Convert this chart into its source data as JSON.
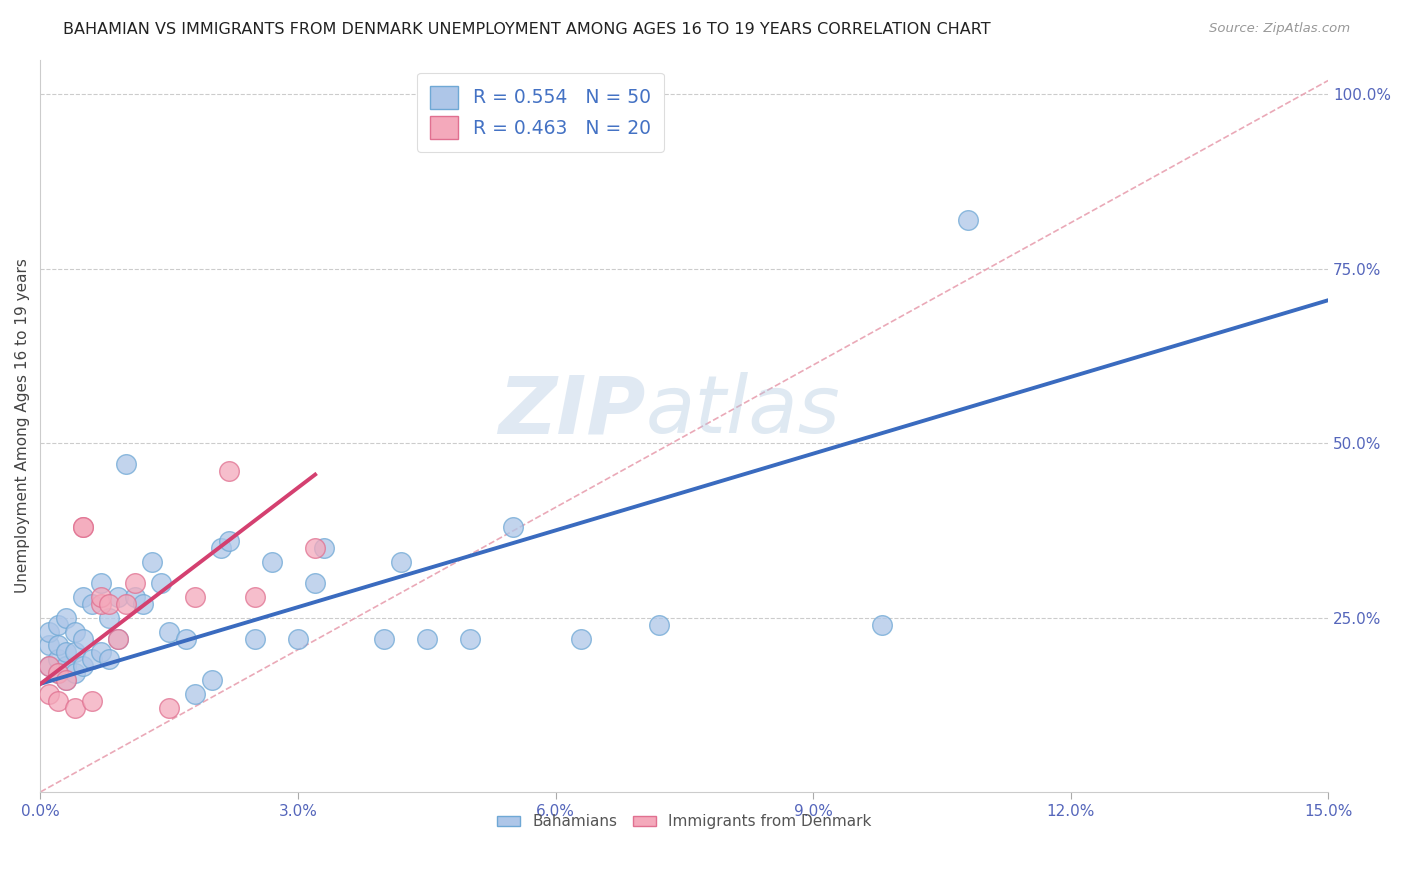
{
  "title": "BAHAMIAN VS IMMIGRANTS FROM DENMARK UNEMPLOYMENT AMONG AGES 16 TO 19 YEARS CORRELATION CHART",
  "source": "Source: ZipAtlas.com",
  "ylabel": "Unemployment Among Ages 16 to 19 years",
  "xlim": [
    0.0,
    0.15
  ],
  "ylim": [
    0.0,
    1.05
  ],
  "xticks": [
    0.0,
    0.03,
    0.06,
    0.09,
    0.12,
    0.15
  ],
  "xtick_labels": [
    "0.0%",
    "3.0%",
    "6.0%",
    "9.0%",
    "12.0%",
    "15.0%"
  ],
  "yticks": [
    0.0,
    0.25,
    0.5,
    0.75,
    1.0
  ],
  "ytick_labels": [
    "",
    "25.0%",
    "50.0%",
    "75.0%",
    "100.0%"
  ],
  "bahamians_color": "#aec6e8",
  "bahamians_edge": "#6fa8d5",
  "denmark_color": "#f4a9bb",
  "denmark_edge": "#e07090",
  "reg_line_blue": "#3a6bbf",
  "reg_line_pink": "#d44070",
  "diag_color": "#e8a0b0",
  "R_bahamians": 0.554,
  "N_bahamians": 50,
  "R_denmark": 0.463,
  "N_denmark": 20,
  "bahamians_x": [
    0.001,
    0.001,
    0.001,
    0.002,
    0.002,
    0.002,
    0.002,
    0.003,
    0.003,
    0.003,
    0.003,
    0.004,
    0.004,
    0.004,
    0.005,
    0.005,
    0.005,
    0.006,
    0.006,
    0.007,
    0.007,
    0.008,
    0.008,
    0.009,
    0.009,
    0.01,
    0.011,
    0.012,
    0.013,
    0.014,
    0.015,
    0.017,
    0.018,
    0.02,
    0.021,
    0.022,
    0.025,
    0.027,
    0.03,
    0.032,
    0.033,
    0.04,
    0.042,
    0.045,
    0.05,
    0.055,
    0.063,
    0.072,
    0.098,
    0.108
  ],
  "bahamians_y": [
    0.18,
    0.21,
    0.23,
    0.17,
    0.19,
    0.21,
    0.24,
    0.16,
    0.18,
    0.2,
    0.25,
    0.17,
    0.2,
    0.23,
    0.18,
    0.22,
    0.28,
    0.19,
    0.27,
    0.2,
    0.3,
    0.19,
    0.25,
    0.22,
    0.28,
    0.47,
    0.28,
    0.27,
    0.33,
    0.3,
    0.23,
    0.22,
    0.14,
    0.16,
    0.35,
    0.36,
    0.22,
    0.33,
    0.22,
    0.3,
    0.35,
    0.22,
    0.33,
    0.22,
    0.22,
    0.38,
    0.22,
    0.24,
    0.24,
    0.82
  ],
  "denmark_x": [
    0.001,
    0.001,
    0.002,
    0.002,
    0.003,
    0.004,
    0.005,
    0.005,
    0.006,
    0.007,
    0.007,
    0.008,
    0.009,
    0.01,
    0.011,
    0.015,
    0.018,
    0.022,
    0.025,
    0.032
  ],
  "denmark_y": [
    0.14,
    0.18,
    0.13,
    0.17,
    0.16,
    0.12,
    0.38,
    0.38,
    0.13,
    0.27,
    0.28,
    0.27,
    0.22,
    0.27,
    0.3,
    0.12,
    0.28,
    0.46,
    0.28,
    0.35
  ],
  "blue_line_x0": 0.0,
  "blue_line_y0": 0.155,
  "blue_line_x1": 0.15,
  "blue_line_y1": 0.705,
  "pink_line_x0": 0.0,
  "pink_line_y0": 0.155,
  "pink_line_x1": 0.032,
  "pink_line_y1": 0.455,
  "watermark_zip": "ZIP",
  "watermark_atlas": "atlas",
  "legend_bahamians": "Bahamians",
  "legend_denmark": "Immigrants from Denmark"
}
